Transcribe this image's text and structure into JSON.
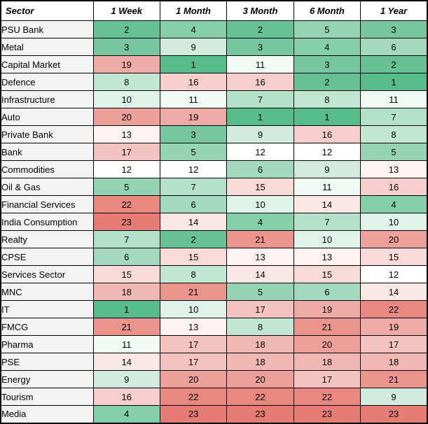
{
  "chart_data": {
    "type": "heatmap",
    "columns": [
      "Sector",
      "1 Week",
      "1 Month",
      "3 Month",
      "6 Month",
      "1 Year"
    ],
    "rows": [
      {
        "sector": "PSU Bank",
        "values": [
          2,
          4,
          2,
          5,
          3
        ]
      },
      {
        "sector": "Metal",
        "values": [
          3,
          9,
          3,
          4,
          6
        ]
      },
      {
        "sector": "Capital Market",
        "values": [
          19,
          1,
          11,
          3,
          2
        ]
      },
      {
        "sector": "Defence",
        "values": [
          8,
          16,
          16,
          2,
          1
        ]
      },
      {
        "sector": "Infrastructure",
        "values": [
          10,
          11,
          7,
          8,
          11
        ]
      },
      {
        "sector": "Auto",
        "values": [
          20,
          19,
          1,
          1,
          7
        ]
      },
      {
        "sector": "Private Bank",
        "values": [
          13,
          3,
          9,
          16,
          8
        ]
      },
      {
        "sector": "Bank",
        "values": [
          17,
          5,
          12,
          12,
          5
        ]
      },
      {
        "sector": "Commodities",
        "values": [
          12,
          12,
          6,
          9,
          13
        ]
      },
      {
        "sector": "Oil & Gas",
        "values": [
          5,
          7,
          15,
          11,
          16
        ]
      },
      {
        "sector": "Financial Services",
        "values": [
          22,
          6,
          10,
          14,
          4
        ]
      },
      {
        "sector": "India Consumption",
        "values": [
          23,
          14,
          4,
          7,
          10
        ]
      },
      {
        "sector": "Realty",
        "values": [
          7,
          2,
          21,
          10,
          20
        ]
      },
      {
        "sector": "CPSE",
        "values": [
          6,
          15,
          13,
          13,
          15
        ]
      },
      {
        "sector": "Services Sector",
        "values": [
          15,
          8,
          14,
          15,
          12
        ]
      },
      {
        "sector": "MNC",
        "values": [
          18,
          21,
          5,
          6,
          14
        ]
      },
      {
        "sector": "IT",
        "values": [
          1,
          10,
          17,
          19,
          22
        ]
      },
      {
        "sector": "FMCG",
        "values": [
          21,
          13,
          8,
          21,
          19
        ]
      },
      {
        "sector": "Pharma",
        "values": [
          11,
          17,
          18,
          20,
          17
        ]
      },
      {
        "sector": "PSE",
        "values": [
          14,
          17,
          18,
          18,
          18
        ]
      },
      {
        "sector": "Energy",
        "values": [
          9,
          20,
          20,
          17,
          21
        ]
      },
      {
        "sector": "Tourism",
        "values": [
          16,
          22,
          22,
          22,
          9
        ]
      },
      {
        "sector": "Media",
        "values": [
          4,
          23,
          23,
          23,
          23
        ]
      }
    ],
    "color_scale": {
      "low_value": 1,
      "mid_value": 12,
      "high_value": 23,
      "low_color": "#57BB8A",
      "mid_color": "#FFFFFF",
      "high_color": "#E67C73"
    },
    "layout": {
      "legend": "none",
      "grid": "on"
    }
  }
}
